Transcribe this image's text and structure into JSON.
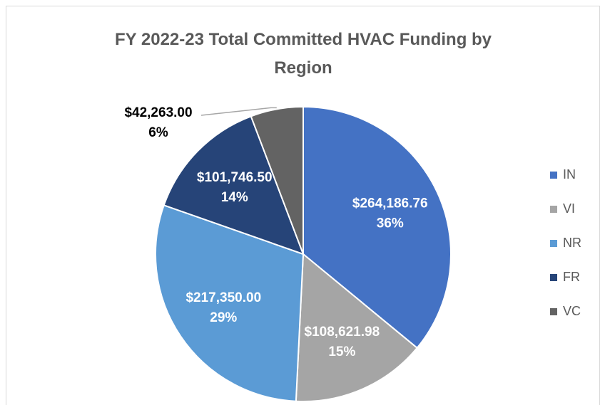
{
  "chart_data": {
    "type": "pie",
    "title": "FY 2022-23 Total Committed HVAC Funding by Region",
    "categories": [
      "IN",
      "VI",
      "NR",
      "FR",
      "VC"
    ],
    "values": [
      264186.76,
      108621.98,
      217350.0,
      101746.5,
      42263.0
    ],
    "value_labels": [
      "$264,186.76",
      "$108,621.98",
      "$217,350.00",
      "$101,746.50",
      "$42,263.00"
    ],
    "percent_labels": [
      "36%",
      "15%",
      "29%",
      "14%",
      "6%"
    ],
    "colors": [
      "#4472c4",
      "#a5a5a5",
      "#5b9bd5",
      "#264478",
      "#636363"
    ],
    "legend": "right"
  }
}
